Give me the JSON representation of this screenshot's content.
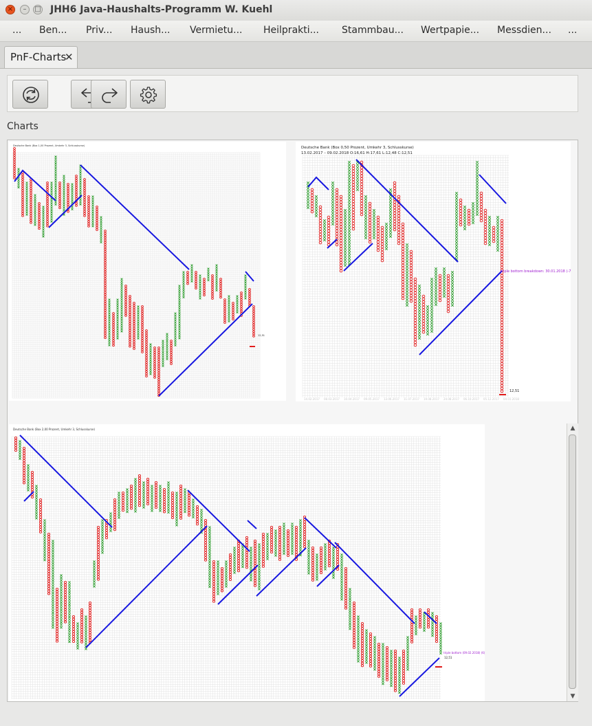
{
  "window": {
    "title": "JHH6 Java-Haushalts-Programm W. Kuehl"
  },
  "menu": {
    "items": [
      "...",
      "Ben...",
      "Priv...",
      "Haush...",
      "Vermietu...",
      "Heilprakti...",
      "Stammbau...",
      "Wertpapie...",
      "Messdien...",
      "..."
    ]
  },
  "tab": {
    "label": "PnF-Charts",
    "close": "✕"
  },
  "section": {
    "label": "Charts"
  },
  "colors": {
    "x": "#2e9d2e",
    "o": "#e21b1b",
    "trend": "#1616e0",
    "signal": "#a020d0"
  },
  "icons": [
    "refresh-icon",
    "undo-icon",
    "redo-icon",
    "settings-icon"
  ],
  "chart_data": [
    {
      "type": "point-and-figure",
      "title": "Deutsche Bank (Box 1,00 Prozent, Umkehr 3, Schlusskurse)",
      "subtitle": "",
      "columns_direction": [
        "o",
        "x",
        "o",
        "x",
        "o",
        "x",
        "o",
        "x",
        "o",
        "x",
        "o",
        "x",
        "o"
      ],
      "last_value": "12,51",
      "signal_text": ""
    },
    {
      "type": "point-and-figure",
      "title": "Deutsche Bank (Box 0,50 Prozent, Umkehr 3, Schlusskurse)",
      "subtitle": "13.02.2017 – 09.02.2018 O:16,61 H:17,61 L:12,48 C:12,51",
      "columns_direction": [
        "x",
        "o",
        "x",
        "o",
        "x",
        "o",
        "x",
        "o",
        "x",
        "o",
        "x",
        "o",
        "x",
        "o",
        "x",
        "o",
        "x",
        "o",
        "x",
        "o",
        "x",
        "o",
        "x",
        "o",
        "x",
        "o",
        "x",
        "o",
        "x",
        "o",
        "x",
        "o",
        "x",
        "o",
        "x",
        "o",
        "x",
        "o",
        "x",
        "o",
        "x",
        "o"
      ],
      "last_value": "12,51",
      "signal_text": "triple bottom breakdown: 30.01.2018 (-7)",
      "x_ticks": [
        "14.02.2017",
        "08.03.2017",
        "10.04.2017",
        "09.05.2017",
        "13.06.2017",
        "11.07.2017",
        "19.08.2017",
        "24.08.2017",
        "06.10.2017",
        "05.12.2017",
        "04.01.2018"
      ]
    },
    {
      "type": "point-and-figure",
      "title": "Deutsche Bank (Box 2,00 Prozent, Umkehr 3, Schlusskurse)",
      "subtitle": "",
      "last_value": "12,51",
      "signal_text": "triple bottom (09.02.2018) (6)"
    }
  ]
}
